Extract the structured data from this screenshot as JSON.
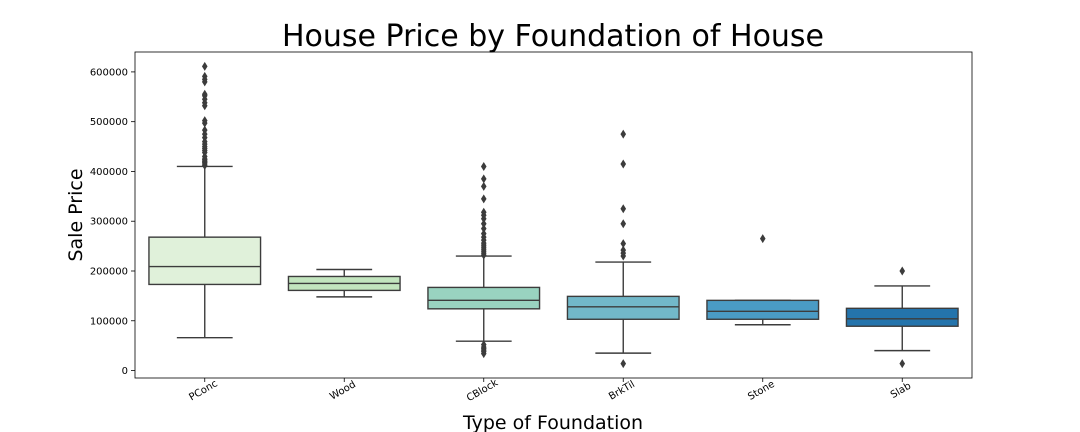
{
  "chart_data": {
    "type": "box",
    "title": "House Price by Foundation of House",
    "xlabel": "Type of Foundation",
    "ylabel": "Sale Price",
    "ylim": [
      -15000,
      640000
    ],
    "yticks": [
      0,
      100000,
      200000,
      300000,
      400000,
      500000,
      600000
    ],
    "ytick_labels": [
      "0",
      "100000",
      "200000",
      "300000",
      "400000",
      "500000",
      "600000"
    ],
    "grid": false,
    "categories": [
      "PConc",
      "Wood",
      "CBlock",
      "BrkTil",
      "Stone",
      "Slab"
    ],
    "boxes": [
      {
        "category": "PConc",
        "whisker_low": 66000,
        "q1": 173000,
        "median": 209000,
        "q3": 268000,
        "whisker_high": 410000,
        "fliers": [
          412000,
          415000,
          418000,
          420000,
          423000,
          425000,
          430000,
          438000,
          442000,
          446000,
          450000,
          455000,
          460000,
          468000,
          475000,
          483000,
          497000,
          502000,
          532000,
          538000,
          545000,
          552000,
          555000,
          580000,
          585000,
          591000,
          611000
        ],
        "color": "#e0f1da"
      },
      {
        "category": "Wood",
        "whisker_low": 148000,
        "q1": 161000,
        "median": 175000,
        "q3": 189000,
        "whisker_high": 203000,
        "fliers": [],
        "color": "#c2e5be"
      },
      {
        "category": "CBlock",
        "whisker_low": 59000,
        "q1": 124000,
        "median": 141000,
        "q3": 167000,
        "whisker_high": 230000,
        "fliers": [
          34000,
          38000,
          41000,
          44000,
          47000,
          52000,
          232000,
          236000,
          240000,
          244000,
          248000,
          252000,
          256000,
          262000,
          268000,
          275000,
          285000,
          295000,
          305000,
          312000,
          318000,
          345000,
          370000,
          385000,
          410000
        ],
        "color": "#99d3c0"
      },
      {
        "category": "BrkTil",
        "whisker_low": 35000,
        "q1": 103000,
        "median": 128000,
        "q3": 149000,
        "whisker_high": 218000,
        "fliers": [
          14000,
          230000,
          236000,
          242000,
          255000,
          295000,
          325000,
          415000,
          475000
        ],
        "color": "#72b8c9"
      },
      {
        "category": "Stone",
        "whisker_low": 92000,
        "q1": 103000,
        "median": 119000,
        "q3": 141000,
        "whisker_high": 141000,
        "fliers": [
          265000
        ],
        "color": "#4a9bc4"
      },
      {
        "category": "Slab",
        "whisker_low": 40000,
        "q1": 89000,
        "median": 104000,
        "q3": 125000,
        "whisker_high": 170000,
        "fliers": [
          14000,
          200000
        ],
        "color": "#2474ac"
      }
    ]
  }
}
